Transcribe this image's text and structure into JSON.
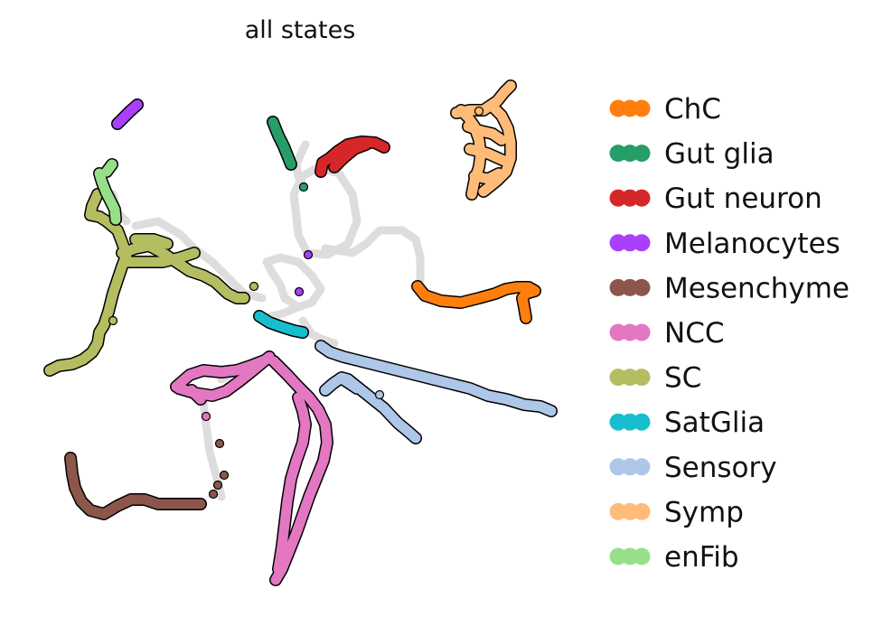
{
  "chart_data": {
    "type": "scatter",
    "title": "all states",
    "xlabel": "",
    "ylabel": "",
    "axes_visible": false,
    "legend_position": "right",
    "background_color": "#dddddd",
    "background_paths": [
      [
        [
          335,
          195
        ],
        [
          352,
          185
        ],
        [
          375,
          192
        ],
        [
          390,
          215
        ],
        [
          395,
          245
        ],
        [
          385,
          270
        ],
        [
          362,
          282
        ],
        [
          340,
          280
        ],
        [
          330,
          260
        ],
        [
          328,
          240
        ],
        [
          325,
          215
        ],
        [
          335,
          195
        ]
      ],
      [
        [
          360,
          275
        ],
        [
          390,
          280
        ],
        [
          405,
          270
        ],
        [
          420,
          255
        ],
        [
          445,
          255
        ],
        [
          460,
          265
        ],
        [
          465,
          285
        ],
        [
          465,
          310
        ]
      ],
      [
        [
          295,
          290
        ],
        [
          310,
          285
        ],
        [
          330,
          290
        ],
        [
          345,
          305
        ],
        [
          355,
          320
        ],
        [
          345,
          335
        ],
        [
          330,
          340
        ],
        [
          315,
          330
        ],
        [
          310,
          315
        ],
        [
          300,
          300
        ],
        [
          295,
          290
        ]
      ],
      [
        [
          330,
          340
        ],
        [
          310,
          348
        ],
        [
          290,
          352
        ]
      ],
      [
        [
          335,
          355
        ],
        [
          345,
          370
        ],
        [
          355,
          375
        ],
        [
          370,
          380
        ]
      ],
      [
        [
          300,
          395
        ],
        [
          280,
          400
        ],
        [
          262,
          410
        ],
        [
          245,
          420
        ]
      ],
      [
        [
          225,
          445
        ],
        [
          228,
          470
        ],
        [
          232,
          500
        ],
        [
          240,
          530
        ],
        [
          245,
          550
        ]
      ],
      [
        [
          150,
          250
        ],
        [
          175,
          245
        ],
        [
          200,
          260
        ],
        [
          215,
          275
        ],
        [
          235,
          290
        ],
        [
          255,
          310
        ],
        [
          270,
          325
        ],
        [
          290,
          330
        ]
      ],
      [
        [
          125,
          215
        ],
        [
          130,
          235
        ],
        [
          140,
          245
        ]
      ],
      [
        [
          335,
          205
        ],
        [
          330,
          195
        ],
        [
          328,
          182
        ],
        [
          333,
          170
        ],
        [
          338,
          160
        ]
      ]
    ],
    "series": [
      {
        "name": "ChC",
        "color": "#ff7f0e",
        "paths": [
          [
            [
              462,
              317
            ],
            [
              470,
              327
            ],
            [
              488,
              333
            ],
            [
              510,
              335
            ],
            [
              530,
              330
            ],
            [
              548,
              325
            ],
            [
              560,
              320
            ],
            [
              572,
              318
            ],
            [
              585,
              318
            ],
            [
              592,
              322
            ],
            [
              582,
              325
            ],
            [
              578,
              330
            ],
            [
              580,
              340
            ],
            [
              582,
              352
            ]
          ]
        ]
      },
      {
        "name": "Gut glia",
        "color": "#279e68",
        "paths": [
          [
            [
              302,
              135
            ],
            [
              308,
              150
            ],
            [
              314,
              162
            ],
            [
              318,
              172
            ],
            [
              322,
              182
            ]
          ]
        ],
        "points": [
          [
            336,
            207
          ]
        ]
      },
      {
        "name": "Gut neuron",
        "color": "#d62728",
        "paths": [
          [
            [
              355,
              190
            ],
            [
              357,
              180
            ],
            [
              365,
              175
            ],
            [
              373,
              168
            ],
            [
              385,
              160
            ],
            [
              400,
              157
            ],
            [
              415,
              158
            ],
            [
              425,
              163
            ]
          ],
          [
            [
              370,
              185
            ],
            [
              380,
              175
            ],
            [
              392,
              165
            ],
            [
              405,
              160
            ]
          ]
        ]
      },
      {
        "name": "Melanocytes",
        "color": "#aa40fc",
        "paths": [
          [
            [
              130,
              137
            ],
            [
              137,
              130
            ],
            [
              144,
              123
            ],
            [
              152,
              116
            ]
          ]
        ],
        "points": [
          [
            341,
            282
          ],
          [
            331,
            323
          ]
        ]
      },
      {
        "name": "Mesenchyme",
        "color": "#8c564b",
        "paths": [
          [
            [
              78,
              507
            ],
            [
              80,
              525
            ],
            [
              83,
              540
            ],
            [
              90,
              555
            ],
            [
              100,
              565
            ],
            [
              115,
              569
            ],
            [
              130,
              560
            ],
            [
              145,
              553
            ],
            [
              160,
              553
            ],
            [
              175,
              558
            ],
            [
              195,
              558
            ],
            [
              210,
              558
            ],
            [
              222,
              558
            ]
          ]
        ],
        "points": [
          [
            243,
            491
          ],
          [
            248,
            526
          ],
          [
            241,
            537
          ],
          [
            236,
            547
          ]
        ]
      },
      {
        "name": "NCC",
        "color": "#e377c2",
        "paths": [
          [
            [
              195,
              428
            ],
            [
              210,
              415
            ],
            [
              225,
              410
            ],
            [
              245,
              412
            ],
            [
              262,
              410
            ],
            [
              280,
              404
            ],
            [
              295,
              398
            ]
          ],
          [
            [
              198,
              430
            ],
            [
              215,
              435
            ],
            [
              235,
              438
            ],
            [
              250,
              433
            ],
            [
              265,
              422
            ],
            [
              280,
              410
            ],
            [
              298,
              395
            ]
          ],
          [
            [
              212,
              432
            ],
            [
              222,
              442
            ]
          ],
          [
            [
              303,
              400
            ],
            [
              318,
              415
            ],
            [
              330,
              428
            ],
            [
              342,
              440
            ],
            [
              352,
              453
            ],
            [
              360,
              470
            ],
            [
              362,
              490
            ],
            [
              358,
              510
            ],
            [
              350,
              530
            ],
            [
              342,
              550
            ],
            [
              335,
              570
            ],
            [
              328,
              590
            ],
            [
              320,
              610
            ],
            [
              312,
              630
            ],
            [
              305,
              642
            ]
          ],
          [
            [
              330,
              440
            ],
            [
              335,
              455
            ],
            [
              338,
              470
            ],
            [
              335,
              490
            ],
            [
              328,
              510
            ],
            [
              322,
              530
            ],
            [
              318,
              555
            ],
            [
              315,
              580
            ],
            [
              312,
              605
            ],
            [
              308,
              630
            ]
          ]
        ],
        "points": [
          [
            228,
            461
          ]
        ]
      },
      {
        "name": "SC",
        "color": "#b5bd61",
        "paths": [
          [
            [
              55,
              410
            ],
            [
              65,
              405
            ],
            [
              80,
              403
            ],
            [
              92,
              398
            ],
            [
              102,
              390
            ],
            [
              108,
              380
            ],
            [
              110,
              368
            ],
            [
              115,
              360
            ],
            [
              120,
              345
            ],
            [
              125,
              325
            ],
            [
              130,
              310
            ],
            [
              135,
              295
            ],
            [
              140,
              282
            ],
            [
              135,
              268
            ],
            [
              130,
              255
            ],
            [
              118,
              245
            ],
            [
              110,
              240
            ],
            [
              100,
              238
            ],
            [
              102,
              228
            ],
            [
              108,
              215
            ]
          ],
          [
            [
              135,
              280
            ],
            [
              150,
              275
            ],
            [
              165,
              272
            ],
            [
              180,
              280
            ],
            [
              195,
              290
            ],
            [
              210,
              300
            ],
            [
              225,
              305
            ],
            [
              238,
              312
            ],
            [
              252,
              325
            ],
            [
              262,
              330
            ],
            [
              270,
              330
            ]
          ],
          [
            [
              140,
              290
            ],
            [
              160,
              290
            ],
            [
              180,
              290
            ],
            [
              200,
              285
            ],
            [
              215,
              280
            ]
          ],
          [
            [
              150,
              265
            ],
            [
              170,
              265
            ],
            [
              185,
              270
            ]
          ]
        ],
        "points": [
          [
            125,
            355
          ],
          [
            281,
            317
          ]
        ]
      },
      {
        "name": "SatGlia",
        "color": "#17becf",
        "paths": [
          [
            [
              287,
              350
            ],
            [
              298,
              357
            ],
            [
              312,
              362
            ],
            [
              325,
              366
            ],
            [
              335,
              368
            ]
          ]
        ]
      },
      {
        "name": "Sensory",
        "color": "#aec7e8",
        "paths": [
          [
            [
              355,
              383
            ],
            [
              365,
              390
            ],
            [
              380,
              395
            ],
            [
              400,
              400
            ],
            [
              420,
              405
            ],
            [
              440,
              410
            ],
            [
              460,
              415
            ],
            [
              480,
              420
            ],
            [
              500,
              425
            ],
            [
              520,
              430
            ],
            [
              540,
              438
            ],
            [
              560,
              442
            ],
            [
              580,
              448
            ],
            [
              598,
              450
            ],
            [
              610,
              455
            ]
          ],
          [
            [
              360,
              432
            ],
            [
              368,
              425
            ],
            [
              378,
              418
            ],
            [
              385,
              420
            ],
            [
              395,
              428
            ],
            [
              410,
              440
            ],
            [
              425,
              452
            ],
            [
              440,
              468
            ],
            [
              452,
              478
            ],
            [
              460,
              485
            ]
          ],
          [
            [
              380,
              420
            ],
            [
              395,
              430
            ]
          ]
        ],
        "points": [
          [
            420,
            437
          ]
        ]
      },
      {
        "name": "Symp",
        "color": "#ffbb78",
        "paths": [
          [
            [
              510,
              122
            ],
            [
              518,
              130
            ],
            [
              525,
              140
            ],
            [
              530,
              155
            ],
            [
              532,
              170
            ],
            [
              530,
              185
            ],
            [
              525,
              200
            ],
            [
              522,
              215
            ]
          ],
          [
            [
              545,
              118
            ],
            [
              555,
              128
            ],
            [
              562,
              142
            ],
            [
              565,
              158
            ],
            [
              565,
              175
            ],
            [
              560,
              190
            ],
            [
              550,
              200
            ],
            [
              535,
              212
            ]
          ],
          [
            [
              505,
              125
            ],
            [
              520,
              122
            ],
            [
              535,
              122
            ],
            [
              550,
              112
            ],
            [
              558,
              102
            ],
            [
              565,
              95
            ]
          ],
          [
            [
              518,
              140
            ],
            [
              532,
              145
            ],
            [
              545,
              148
            ],
            [
              555,
              155
            ]
          ],
          [
            [
              520,
              165
            ],
            [
              540,
              170
            ],
            [
              558,
              178
            ]
          ],
          [
            [
              525,
              195
            ],
            [
              540,
              198
            ],
            [
              552,
              192
            ]
          ]
        ],
        "points": [
          [
            530,
            123
          ]
        ]
      },
      {
        "name": "enFib",
        "color": "#98df8a",
        "paths": [
          [
            [
              110,
              192
            ],
            [
              113,
              202
            ],
            [
              117,
              212
            ],
            [
              122,
              222
            ],
            [
              127,
              232
            ],
            [
              128,
              243
            ]
          ],
          [
            [
              118,
              190
            ],
            [
              124,
              182
            ]
          ]
        ]
      }
    ]
  }
}
